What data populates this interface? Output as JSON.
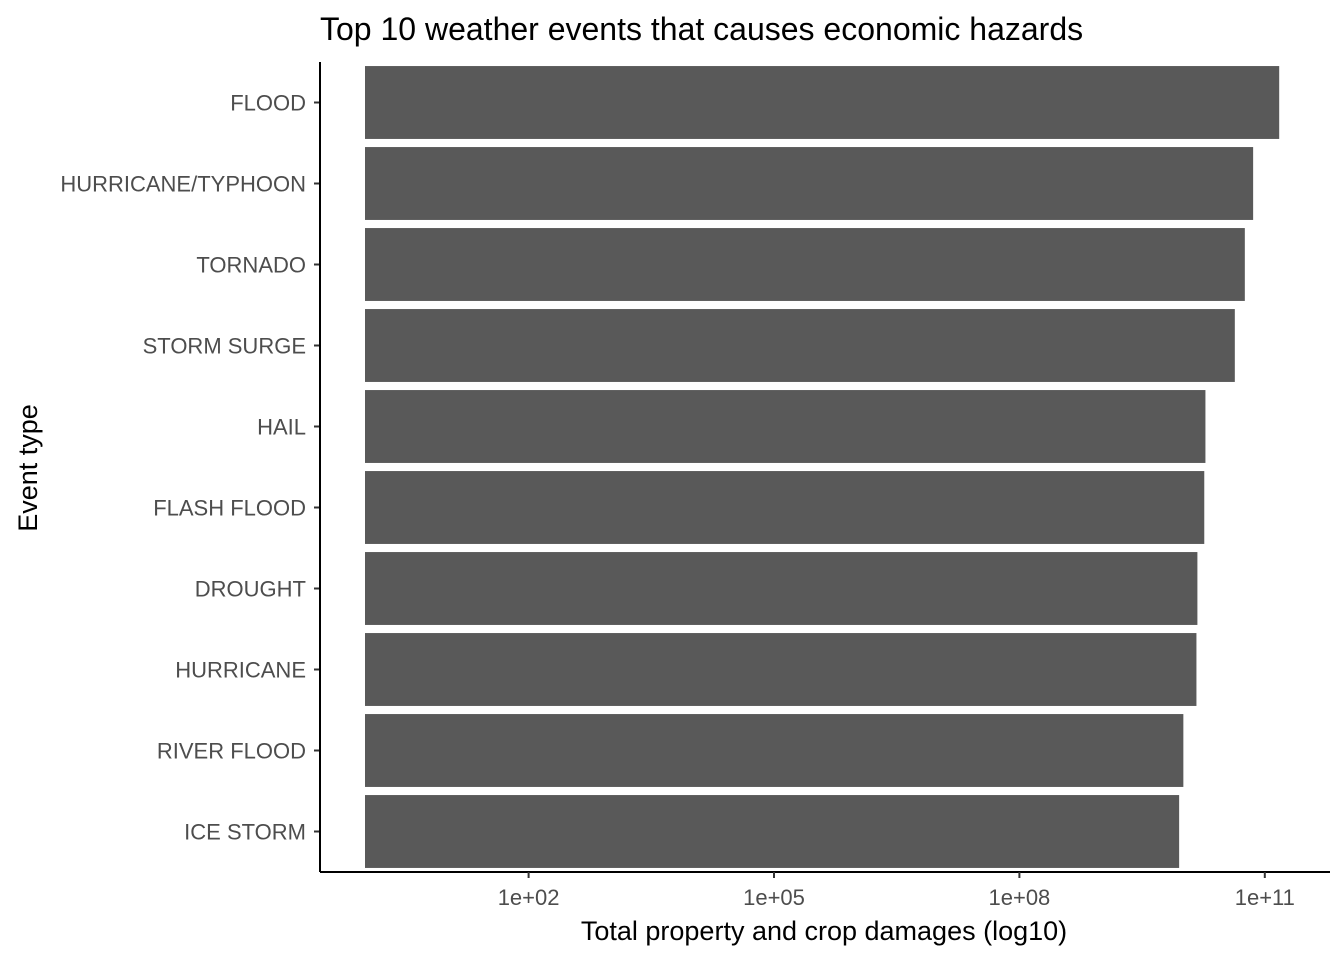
{
  "chart_data": {
    "type": "bar",
    "orientation": "horizontal",
    "title": "Top 10 weather events that causes economic hazards",
    "xlabel": "Total property and crop damages (log10)",
    "ylabel": "Event type",
    "x_scale": "log10",
    "xlim": [
      1,
      300000000000
    ],
    "x_ticks": [
      {
        "value": 100,
        "label": "1e+02"
      },
      {
        "value": 100000,
        "label": "1e+05"
      },
      {
        "value": 100000000,
        "label": "1e+08"
      },
      {
        "value": 100000000000,
        "label": "1e+11"
      }
    ],
    "categories": [
      "FLOOD",
      "HURRICANE/TYPHOON",
      "TORNADO",
      "STORM SURGE",
      "HAIL",
      "FLASH FLOOD",
      "DROUGHT",
      "HURRICANE",
      "RIVER FLOOD",
      "ICE STORM"
    ],
    "values": [
      150000000000,
      72000000000,
      57000000000,
      43000000000,
      18800000000,
      18200000000,
      15000000000,
      14600000000,
      10100000000,
      8970000000
    ],
    "bar_color": "#595959",
    "grid": false,
    "legend": "none"
  }
}
